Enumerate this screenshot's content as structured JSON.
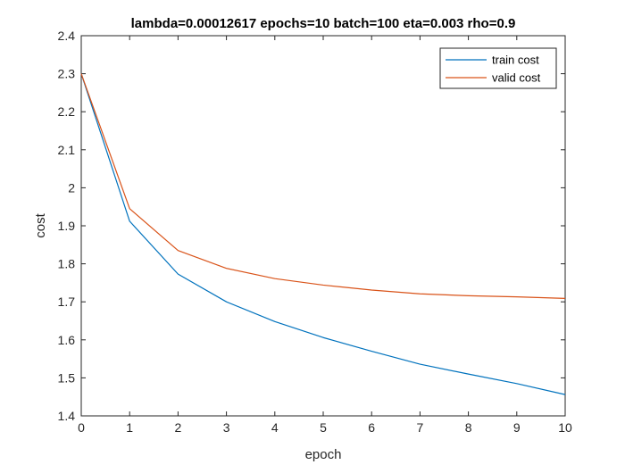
{
  "chart_data": {
    "type": "line",
    "title": "lambda=0.00012617 epochs=10 batch=100 eta=0.003 rho=0.9",
    "xlabel": "epoch",
    "ylabel": "cost",
    "xlim": [
      0,
      10
    ],
    "ylim": [
      1.4,
      2.4
    ],
    "x_ticks": [
      0,
      1,
      2,
      3,
      4,
      5,
      6,
      7,
      8,
      9,
      10
    ],
    "y_ticks": [
      1.4,
      1.5,
      1.6,
      1.7,
      1.8,
      1.9,
      2,
      2.1,
      2.2,
      2.3,
      2.4
    ],
    "x_tick_labels": [
      "0",
      "1",
      "2",
      "3",
      "4",
      "5",
      "6",
      "7",
      "8",
      "9",
      "10"
    ],
    "y_tick_labels": [
      "1.4",
      "1.5",
      "1.6",
      "1.7",
      "1.8",
      "1.9",
      "2",
      "2.1",
      "2.2",
      "2.3",
      "2.4"
    ],
    "grid": false,
    "legend_position": "top-right",
    "x": [
      0,
      1,
      2,
      3,
      4,
      5,
      6,
      7,
      8,
      9,
      10
    ],
    "series": [
      {
        "name": "train cost",
        "color": "#0072BD",
        "values": [
          2.3,
          1.912,
          1.773,
          1.7,
          1.648,
          1.606,
          1.57,
          1.536,
          1.51,
          1.485,
          1.456
        ]
      },
      {
        "name": "valid cost",
        "color": "#D95319",
        "values": [
          2.3,
          1.945,
          1.835,
          1.788,
          1.761,
          1.744,
          1.731,
          1.721,
          1.716,
          1.713,
          1.709
        ]
      }
    ]
  }
}
